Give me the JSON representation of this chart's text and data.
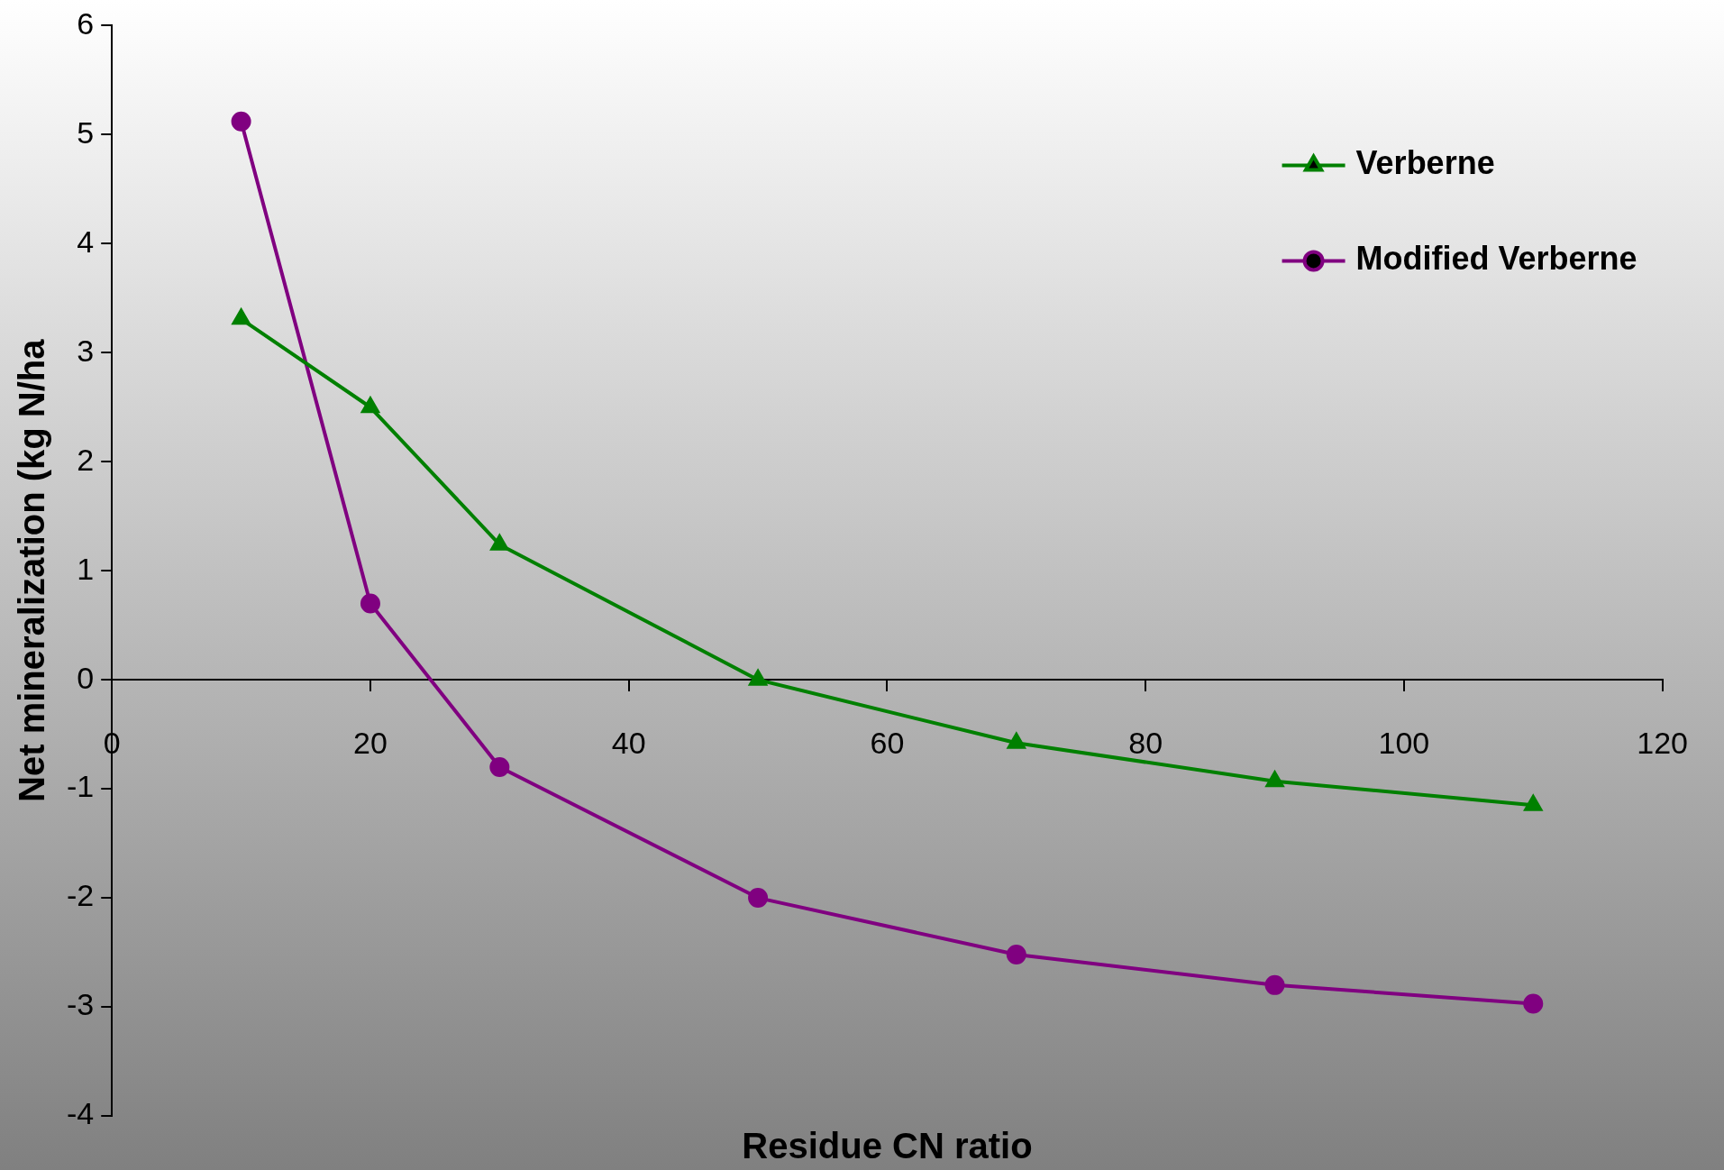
{
  "chart_data": {
    "type": "line",
    "xlabel": "Residue CN ratio",
    "ylabel": "Net mineralization (kg N/ha",
    "xlim": [
      0,
      120
    ],
    "xticks": [
      0,
      20,
      40,
      60,
      80,
      100,
      120
    ],
    "ylim": [
      -4,
      6
    ],
    "yticks": [
      -4,
      -3,
      -2,
      -1,
      0,
      1,
      2,
      3,
      4,
      5,
      6
    ],
    "grid": false,
    "legend": "top right",
    "line_style": "solid",
    "x": [
      10,
      20,
      30,
      50,
      70,
      90,
      110
    ],
    "series": [
      {
        "name": "Verberne",
        "color": "#008000",
        "marker": "triangle",
        "values": [
          3.31,
          2.5,
          1.24,
          0,
          -0.58,
          -0.93,
          -1.15
        ]
      },
      {
        "name": "Modified Verberne",
        "color": "#800080",
        "marker": "circle",
        "values": [
          5.12,
          0.7,
          -0.8,
          -2.0,
          -2.52,
          -2.8,
          -2.97
        ]
      }
    ]
  }
}
